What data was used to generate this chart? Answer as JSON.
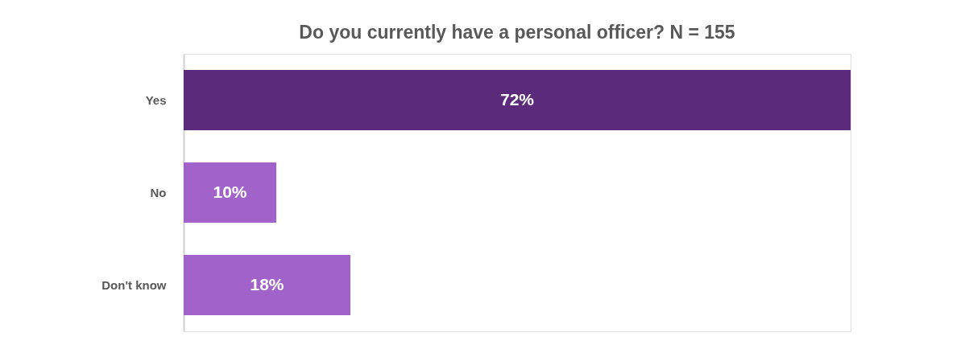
{
  "chart_data": {
    "type": "bar",
    "orientation": "horizontal",
    "title": "Do you currently have a personal officer? N = 155",
    "categories": [
      "Yes",
      "No",
      "Don't know"
    ],
    "values": [
      72,
      10,
      18
    ],
    "colors": [
      "#5c2a7b",
      "#a163c9",
      "#a163c9"
    ],
    "value_labels": [
      "72%",
      "10%",
      "18%"
    ],
    "tick_labels": "y",
    "grid": false
  }
}
